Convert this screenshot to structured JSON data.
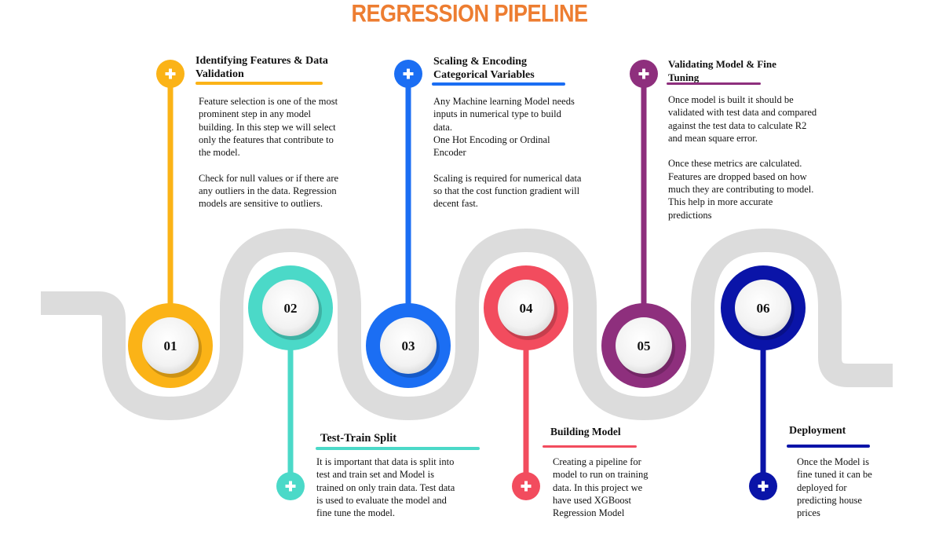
{
  "title": "REGRESSION PIPELINE",
  "colors": {
    "title": "#ed7d31",
    "road": "#dcdcdc",
    "step1": "#fbb317",
    "step2": "#4bd9c8",
    "step3": "#1b6ef3",
    "step4": "#f24c5e",
    "step5": "#8e2f7d",
    "step6": "#0a14a8"
  },
  "steps": [
    {
      "number": "01",
      "color": "#fbb317",
      "heading": "Identifying Features & Data\nValidation",
      "body": "Feature selection is one of the most\nprominent step in any model\nbuilding. In this step we will select\nonly the features that contribute to\nthe model.\n\nCheck for null values or if there are\nany outliers in the data. Regression\nmodels are sensitive to outliers.",
      "icon": "plus-icon"
    },
    {
      "number": "02",
      "color": "#4bd9c8",
      "heading": "Test-Train Split",
      "body": "It is important that data is split into\ntest and train set and Model is\ntrained on only train data. Test data\nis used to evaluate the model and\nfine tune the model.",
      "icon": "plus-icon"
    },
    {
      "number": "03",
      "color": "#1b6ef3",
      "heading": "Scaling & Encoding\nCategorical Variables",
      "body": "Any Machine learning Model needs\ninputs in numerical type to build\ndata.\nOne Hot Encoding or Ordinal\nEncoder\n\nScaling is required for numerical data\nso that the cost function gradient will\ndecent fast.",
      "icon": "plus-icon"
    },
    {
      "number": "04",
      "color": "#f24c5e",
      "heading": "Building Model",
      "body": "Creating a pipeline for\nmodel to run on training\ndata. In this project we\nhave used XGBoost\nRegression Model",
      "icon": "plus-icon"
    },
    {
      "number": "05",
      "color": "#8e2f7d",
      "heading": "Validating Model & Fine\nTuning",
      "body": "Once model is built it should be\nvalidated with test data and compared\nagainst the test data to calculate R2\nand mean square error.\n\nOnce these metrics are calculated.\nFeatures are dropped based on how\nmuch they are contributing to model.\nThis help in more accurate\npredictions",
      "icon": "plus-icon"
    },
    {
      "number": "06",
      "color": "#0a14a8",
      "heading": "Deployment",
      "body": "Once the Model is\nfine tuned it can be\ndeployed for\npredicting house\nprices",
      "icon": "plus-icon"
    }
  ]
}
